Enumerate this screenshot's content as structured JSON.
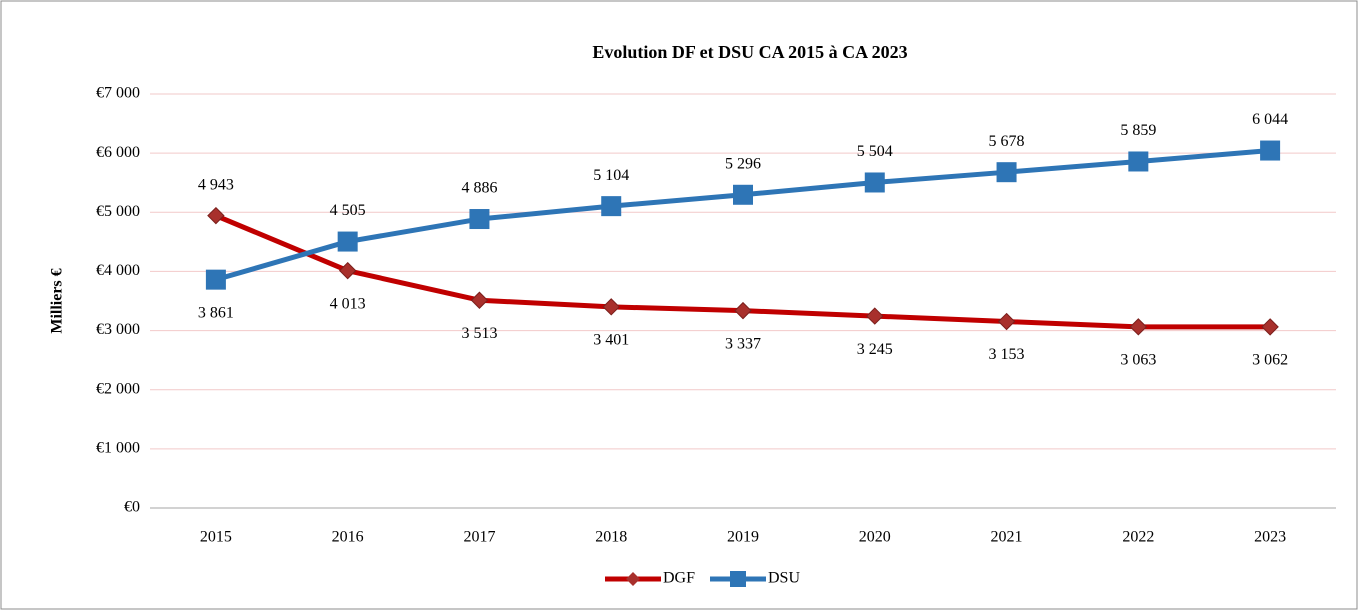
{
  "chart_data": {
    "type": "line",
    "title": "Evolution DF et DSU CA 2015 à CA 2023",
    "y_label": "Milliers €",
    "categories": [
      "2015",
      "2016",
      "2017",
      "2018",
      "2019",
      "2020",
      "2021",
      "2022",
      "2023"
    ],
    "series": [
      {
        "name": "DGF",
        "color": "#c00000",
        "marker": "diamond",
        "marker_color": "#a8302c",
        "values": [
          4943,
          4013,
          3513,
          3401,
          3337,
          3245,
          3153,
          3063,
          3062
        ],
        "value_labels": [
          "4 943",
          "4 013",
          "3 513",
          "3 401",
          "3 337",
          "3 245",
          "3 153",
          "3 063",
          "3 062"
        ]
      },
      {
        "name": "DSU",
        "color": "#2e75b6",
        "marker": "square",
        "marker_color": "#2e75b6",
        "values": [
          3861,
          4505,
          4886,
          5104,
          5296,
          5504,
          5678,
          5859,
          6044
        ],
        "value_labels": [
          "3 861",
          "4 505",
          "4 886",
          "5 104",
          "5 296",
          "5 504",
          "5 678",
          "5 859",
          "6 044"
        ]
      }
    ],
    "ylim": [
      0,
      7000
    ],
    "yticks": [
      {
        "value": 0,
        "label": "€0"
      },
      {
        "value": 1000,
        "label": "€1 000"
      },
      {
        "value": 2000,
        "label": "€2 000"
      },
      {
        "value": 3000,
        "label": "€3 000"
      },
      {
        "value": 4000,
        "label": "€4 000"
      },
      {
        "value": 5000,
        "label": "€5 000"
      },
      {
        "value": 6000,
        "label": "€6 000"
      },
      {
        "value": 7000,
        "label": "€7 000"
      }
    ],
    "grid": true,
    "legend": "bottom"
  }
}
